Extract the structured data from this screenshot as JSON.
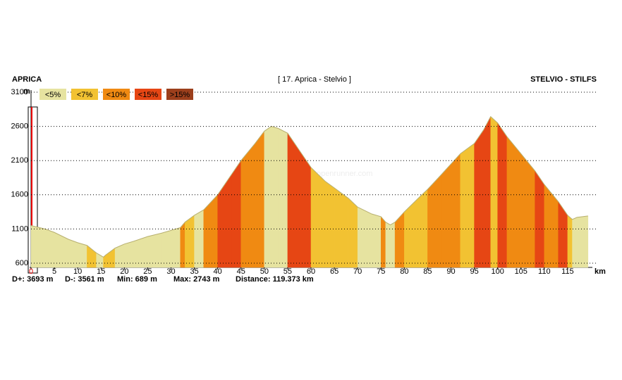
{
  "chart_data": {
    "type": "elevation-profile",
    "title": "[ 17. Aprica - Stelvio ]",
    "start_label": "APRICA",
    "end_label": "STELVIO - STILFS",
    "y_unit": "m",
    "x_unit": "km",
    "watermark": "© www.openrunner.com",
    "slope_classes": [
      {
        "label": "<5%",
        "limit": 5,
        "color": "#e6e3a0"
      },
      {
        "label": "<7%",
        "limit": 7,
        "color": "#f2c232"
      },
      {
        "label": "<10%",
        "limit": 10,
        "color": "#f08a12"
      },
      {
        "label": "<15%",
        "limit": 15,
        "color": "#e64614"
      },
      {
        "label": ">15%",
        "limit": 15,
        "color": "#9c3f1c"
      }
    ],
    "x": [
      0,
      3,
      5,
      8,
      10,
      12,
      14,
      15.5,
      16,
      18,
      20,
      22,
      25,
      28,
      30,
      32,
      33,
      35,
      37,
      40,
      43,
      45,
      48,
      50,
      51.5,
      53,
      55,
      58,
      60,
      63,
      65,
      68,
      70,
      73,
      75,
      76,
      77,
      78,
      80,
      83,
      85,
      88,
      90,
      92,
      95,
      97,
      98.5,
      100,
      102,
      105,
      108,
      110,
      113,
      115,
      116,
      117,
      119.373
    ],
    "series": [
      {
        "name": "Elevation",
        "values": [
          1150,
          1100,
          1050,
          950,
          900,
          860,
          750,
          689,
          720,
          820,
          880,
          920,
          990,
          1040,
          1080,
          1120,
          1200,
          1300,
          1380,
          1600,
          1900,
          2100,
          2350,
          2530,
          2600,
          2570,
          2500,
          2200,
          2000,
          1800,
          1700,
          1550,
          1420,
          1320,
          1280,
          1200,
          1160,
          1200,
          1350,
          1550,
          1680,
          1900,
          2050,
          2200,
          2350,
          2550,
          2743,
          2650,
          2450,
          2200,
          1950,
          1750,
          1500,
          1300,
          1240,
          1270,
          1290
        ]
      }
    ],
    "xlim": [
      0,
      120
    ],
    "xticks": [
      0,
      5,
      10,
      15,
      20,
      25,
      30,
      35,
      40,
      45,
      50,
      55,
      60,
      65,
      70,
      75,
      80,
      85,
      90,
      95,
      100,
      105,
      110,
      115
    ],
    "ylim": [
      600,
      3100
    ],
    "yticks": [
      600,
      1100,
      1600,
      2100,
      2600,
      3100
    ],
    "grid": true,
    "stats": [
      "D+: 3693 m",
      "D-: 3561 m",
      "Min: 689 m",
      "Max: 2743 m",
      "Distance: 119.373 km"
    ]
  }
}
